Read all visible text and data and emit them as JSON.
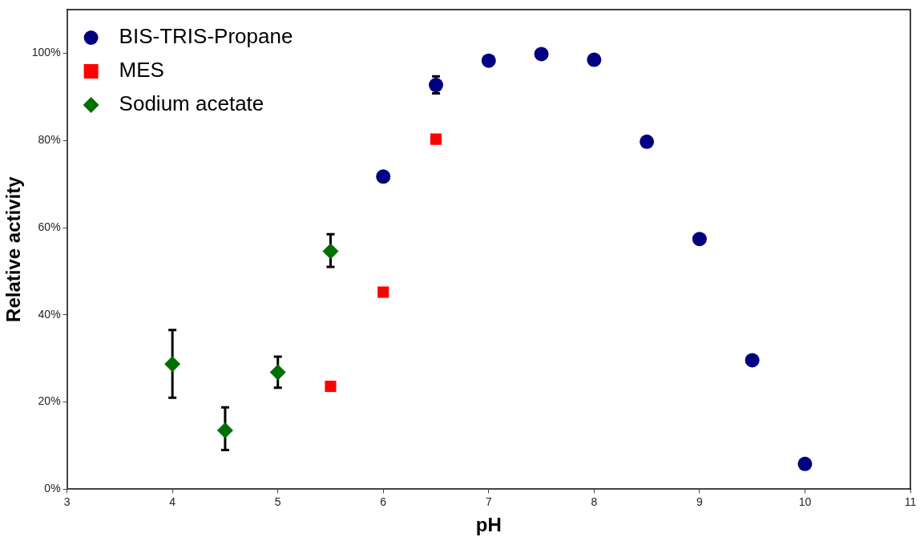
{
  "chart_data": {
    "type": "scatter",
    "xlabel": "pH",
    "ylabel": "Relative activity",
    "xlim": [
      3,
      11
    ],
    "xticks": [
      3,
      4,
      5,
      6,
      7,
      8,
      9,
      10,
      11
    ],
    "ylim": [
      0,
      110
    ],
    "yticks": [
      {
        "value": 0,
        "label": "0%"
      },
      {
        "value": 20,
        "label": "20%"
      },
      {
        "value": 40,
        "label": "40%"
      },
      {
        "value": 60,
        "label": "60%"
      },
      {
        "value": 80,
        "label": "80%"
      },
      {
        "value": 100,
        "label": "100%"
      }
    ],
    "grid": false,
    "legend": "top left",
    "series": [
      {
        "name": "BIS-TRIS-Propane",
        "color": "#000080",
        "marker": "circle",
        "x": [
          6,
          6.5,
          7,
          7.5,
          8,
          8.5,
          9,
          9.5,
          10
        ],
        "values": [
          71.7,
          92.7,
          98.3,
          99.8,
          98.5,
          79.7,
          57.4,
          29.6,
          5.8
        ],
        "errors": [
          null,
          [
            90.8,
            94.7
          ],
          null,
          null,
          null,
          null,
          null,
          null,
          null
        ]
      },
      {
        "name": "MES",
        "color": "#ff0000",
        "marker": "square",
        "x": [
          5.5,
          6,
          6.5
        ],
        "values": [
          23.6,
          45.2,
          80.3
        ]
      },
      {
        "name": "Sodium acetate",
        "color": "#007000",
        "marker": "diamond",
        "x": [
          4,
          4.5,
          5,
          5.5
        ],
        "values": [
          28.7,
          13.5,
          26.8,
          54.6
        ],
        "errors": [
          [
            21,
            36.5
          ],
          [
            9,
            18.8
          ],
          [
            23.3,
            30.4
          ],
          [
            51,
            58.5
          ]
        ]
      }
    ]
  }
}
